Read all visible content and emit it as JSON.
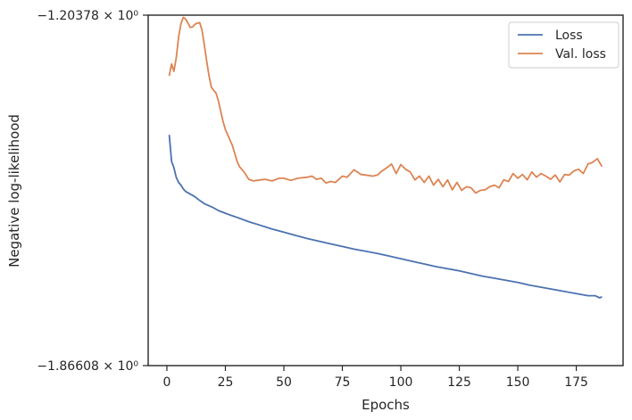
{
  "chart_data": {
    "type": "line",
    "xlabel": "Epochs",
    "ylabel": "Negative log-likelihood",
    "xlim": [
      -8,
      195
    ],
    "xticks": [
      0,
      25,
      50,
      75,
      100,
      125,
      150,
      175
    ],
    "ylim_px_labels": [
      "−1.20378 × 10⁰",
      "−1.86608 × 10⁰"
    ],
    "ytick_labels": [
      {
        "value": -1.20378,
        "label": "−1.20378 × 10⁰"
      },
      {
        "value": -1.86608,
        "label": "−1.86608 × 10⁰"
      }
    ],
    "ylim": [
      -1.86608,
      -1.20378
    ],
    "grid": false,
    "legend": "top-right",
    "series": [
      {
        "name": "Loss",
        "color": "#4c72b0",
        "x": [
          1,
          2,
          3,
          4,
          5,
          6,
          7,
          8,
          10,
          12,
          14,
          16,
          18,
          20,
          22,
          25,
          28,
          30,
          35,
          40,
          45,
          50,
          55,
          60,
          65,
          70,
          75,
          80,
          85,
          90,
          95,
          100,
          105,
          110,
          115,
          120,
          125,
          130,
          135,
          140,
          145,
          150,
          155,
          160,
          165,
          170,
          175,
          180,
          183,
          185,
          186
        ],
        "y": [
          -1.43,
          -1.48,
          -1.492,
          -1.51,
          -1.52,
          -1.525,
          -1.532,
          -1.537,
          -1.542,
          -1.547,
          -1.554,
          -1.56,
          -1.564,
          -1.568,
          -1.573,
          -1.578,
          -1.583,
          -1.586,
          -1.594,
          -1.601,
          -1.608,
          -1.614,
          -1.62,
          -1.626,
          -1.631,
          -1.636,
          -1.641,
          -1.646,
          -1.65,
          -1.654,
          -1.659,
          -1.664,
          -1.669,
          -1.674,
          -1.679,
          -1.683,
          -1.687,
          -1.692,
          -1.697,
          -1.701,
          -1.705,
          -1.709,
          -1.714,
          -1.718,
          -1.722,
          -1.726,
          -1.73,
          -1.734,
          -1.734,
          -1.738,
          -1.736
        ]
      },
      {
        "name": "Val. loss",
        "color": "#dd8452",
        "x": [
          1,
          2,
          3,
          4,
          5,
          6,
          7,
          8,
          9,
          10,
          11,
          12,
          13,
          14,
          15,
          16,
          17,
          18,
          19,
          20,
          21,
          22,
          23,
          24,
          25,
          26,
          27,
          28,
          29,
          30,
          31,
          32,
          33,
          35,
          37,
          40,
          42,
          45,
          48,
          50,
          53,
          56,
          60,
          62,
          64,
          66,
          68,
          70,
          72,
          75,
          77,
          80,
          83,
          85,
          88,
          90,
          92,
          95,
          96,
          98,
          100,
          102,
          104,
          106,
          108,
          110,
          112,
          114,
          116,
          118,
          120,
          122,
          124,
          126,
          128,
          130,
          132,
          134,
          136,
          138,
          140,
          142,
          144,
          146,
          148,
          150,
          152,
          154,
          156,
          158,
          160,
          162,
          164,
          166,
          168,
          170,
          172,
          174,
          176,
          178,
          180,
          182,
          184,
          186
        ],
        "y": [
          -1.3185,
          -1.296,
          -1.31,
          -1.285,
          -1.245,
          -1.22,
          -1.208,
          -1.211,
          -1.219,
          -1.227,
          -1.226,
          -1.221,
          -1.219,
          -1.218,
          -1.232,
          -1.26,
          -1.29,
          -1.318,
          -1.34,
          -1.346,
          -1.351,
          -1.365,
          -1.385,
          -1.405,
          -1.42,
          -1.43,
          -1.44,
          -1.45,
          -1.465,
          -1.48,
          -1.49,
          -1.495,
          -1.5,
          -1.514,
          -1.517,
          -1.515,
          -1.514,
          -1.517,
          -1.512,
          -1.512,
          -1.516,
          -1.512,
          -1.51,
          -1.508,
          -1.514,
          -1.512,
          -1.521,
          -1.518,
          -1.52,
          -1.508,
          -1.51,
          -1.496,
          -1.505,
          -1.506,
          -1.508,
          -1.506,
          -1.498,
          -1.489,
          -1.485,
          -1.503,
          -1.486,
          -1.495,
          -1.5,
          -1.515,
          -1.508,
          -1.52,
          -1.508,
          -1.525,
          -1.514,
          -1.528,
          -1.515,
          -1.534,
          -1.52,
          -1.535,
          -1.528,
          -1.53,
          -1.54,
          -1.535,
          -1.534,
          -1.528,
          -1.525,
          -1.53,
          -1.515,
          -1.518,
          -1.503,
          -1.512,
          -1.505,
          -1.515,
          -1.5,
          -1.51,
          -1.503,
          -1.508,
          -1.514,
          -1.506,
          -1.519,
          -1.505,
          -1.506,
          -1.498,
          -1.495,
          -1.503,
          -1.485,
          -1.482,
          -1.475,
          -1.49
        ]
      }
    ]
  }
}
